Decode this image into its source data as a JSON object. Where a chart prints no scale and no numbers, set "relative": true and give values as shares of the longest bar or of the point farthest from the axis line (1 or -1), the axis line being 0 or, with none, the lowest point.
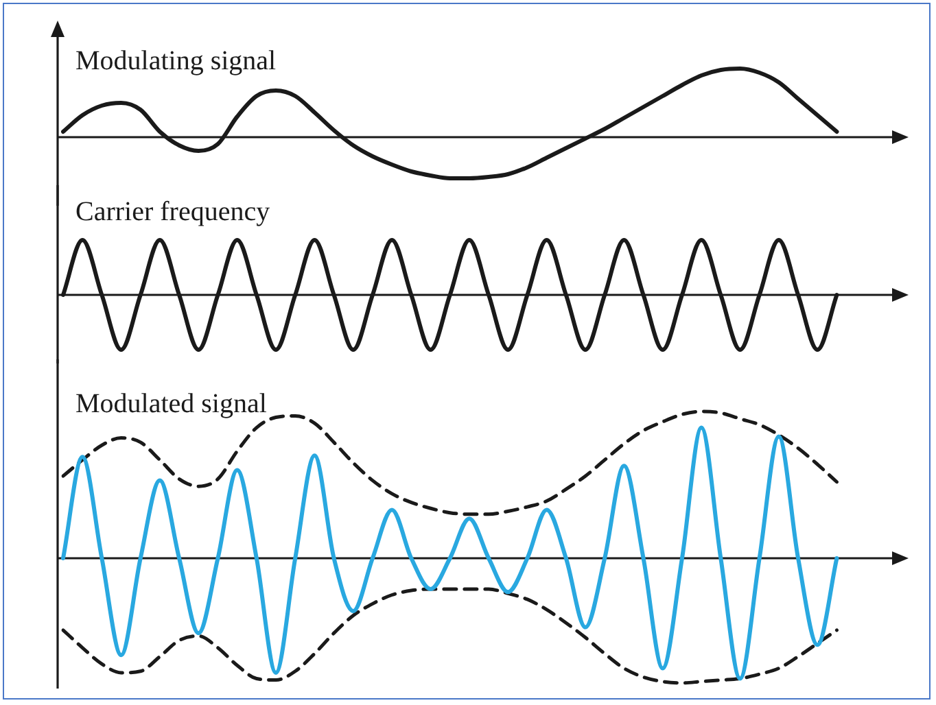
{
  "chart_data": [
    {
      "type": "line",
      "title": "Modulating signal",
      "relative": true,
      "categories": [
        null,
        null,
        null,
        null,
        null,
        null,
        null,
        null,
        null,
        null,
        null,
        null,
        null,
        null,
        null,
        null,
        null,
        null,
        null,
        null,
        null,
        null,
        null,
        null,
        null,
        null,
        null,
        null,
        null,
        null,
        null,
        null,
        null,
        null,
        null,
        null,
        null,
        null,
        null,
        null,
        null,
        null,
        null,
        null
      ],
      "series": [
        {
          "color": "#1a1a1a",
          "values": [
            0.08,
            0.32,
            0.46,
            0.5,
            0.4,
            0.08,
            -0.12,
            -0.2,
            -0.1,
            0.3,
            0.6,
            0.68,
            0.6,
            0.36,
            0.1,
            -0.12,
            -0.28,
            -0.4,
            -0.5,
            -0.56,
            -0.6,
            -0.6,
            -0.58,
            -0.54,
            -0.44,
            -0.3,
            -0.16,
            -0.02,
            0.12,
            0.28,
            0.44,
            0.6,
            0.76,
            0.9,
            0.98,
            1,
            0.94,
            0.8,
            0.56,
            0.32,
            0.08,
            null,
            null,
            null
          ]
        }
      ]
    },
    {
      "type": "line",
      "title": "Carrier frequency",
      "relative": true,
      "categories": [
        null,
        null,
        null,
        null,
        null,
        null,
        null,
        null,
        null,
        null,
        null,
        null,
        null,
        null,
        null,
        null,
        null,
        null,
        null,
        null,
        null,
        null,
        null,
        null,
        null,
        null,
        null,
        null,
        null,
        null,
        null,
        null,
        null,
        null,
        null,
        null,
        null,
        null,
        null,
        null,
        null,
        null,
        null,
        null
      ],
      "series": [
        {
          "color": "#1a1a1a",
          "values": [
            0,
            1,
            0,
            -1,
            0,
            1,
            0,
            -1,
            0,
            1,
            0,
            -1,
            0,
            1,
            0,
            -1,
            0,
            1,
            0,
            -1,
            0,
            1,
            0,
            -1,
            0,
            1,
            0,
            -1,
            0,
            1,
            0,
            -1,
            0,
            1,
            0,
            -1,
            0,
            1,
            0,
            -1,
            0,
            null,
            null,
            null
          ]
        }
      ]
    },
    {
      "type": "line",
      "title": "Modulated signal",
      "relative": true,
      "categories": [
        null,
        null,
        null,
        null,
        null,
        null,
        null,
        null,
        null,
        null,
        null,
        null,
        null,
        null,
        null,
        null,
        null,
        null,
        null,
        null,
        null,
        null,
        null,
        null,
        null,
        null,
        null,
        null,
        null,
        null,
        null,
        null,
        null,
        null,
        null,
        null,
        null,
        null,
        null,
        null,
        null,
        null,
        null,
        null
      ],
      "series": [
        {
          "color": "#29a8e0",
          "values": [
            0,
            0.69,
            0,
            -0.66,
            0,
            0.53,
            0,
            -0.51,
            0,
            0.6,
            0,
            -0.78,
            0,
            0.7,
            0,
            -0.36,
            0,
            0.33,
            0,
            -0.21,
            0,
            0.27,
            0,
            -0.23,
            0,
            0.33,
            0,
            -0.47,
            0,
            0.63,
            0,
            -0.75,
            0,
            0.89,
            0,
            -0.82,
            0,
            0.83,
            0,
            -0.59,
            0,
            null,
            null,
            null
          ]
        },
        {
          "color": "#1a1a1a",
          "line_style": "dashed",
          "values": [
            0.56,
            0.67,
            0.77,
            0.82,
            0.79,
            0.67,
            0.54,
            0.49,
            0.54,
            0.73,
            0.89,
            0.96,
            0.97,
            0.92,
            0.79,
            0.65,
            0.53,
            0.44,
            0.38,
            0.34,
            0.31,
            0.3,
            0.3,
            0.32,
            0.35,
            0.39,
            0.47,
            0.56,
            0.67,
            0.78,
            0.87,
            0.93,
            0.98,
            1,
            0.99,
            0.95,
            0.91,
            0.84,
            0.75,
            0.64,
            0.52,
            null,
            null,
            null
          ]
        },
        {
          "color": "#1a1a1a",
          "line_style": "dashed",
          "values": [
            -0.49,
            -0.61,
            -0.72,
            -0.78,
            -0.77,
            -0.67,
            -0.56,
            -0.53,
            -0.61,
            -0.73,
            -0.82,
            -0.83,
            -0.77,
            -0.65,
            -0.51,
            -0.39,
            -0.31,
            -0.25,
            -0.22,
            -0.21,
            -0.21,
            -0.21,
            -0.21,
            -0.24,
            -0.28,
            -0.35,
            -0.44,
            -0.54,
            -0.65,
            -0.75,
            -0.81,
            -0.84,
            -0.85,
            -0.84,
            -0.83,
            -0.82,
            -0.79,
            -0.75,
            -0.67,
            -0.58,
            -0.49,
            null,
            null,
            null
          ]
        }
      ]
    }
  ]
}
